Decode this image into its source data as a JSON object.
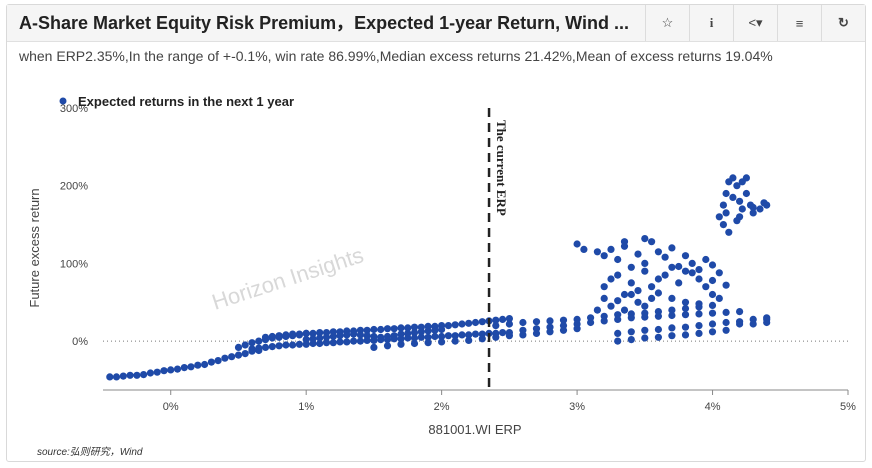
{
  "header": {
    "title": "A-Share Market Equity Risk Premium，Expected 1-year Return, Wind ...",
    "buttons": [
      {
        "name": "star-icon",
        "glyph": "☆"
      },
      {
        "name": "info-icon",
        "glyph": "i"
      },
      {
        "name": "share-icon",
        "glyph": "<▾"
      },
      {
        "name": "settings-icon",
        "glyph": "≡"
      },
      {
        "name": "refresh-icon",
        "glyph": "↻"
      }
    ]
  },
  "subtitle": "when ERP2.35%,In the range of +-0.1%,  win rate 86.99%,Median excess returns 21.42%,Mean of excess returns 19.04%",
  "watermark": "Horizon Insights",
  "source": "source:弘则研究，Wind",
  "colors": {
    "point": "#1f4aa8",
    "axis": "#888888",
    "zero_line": "#777777",
    "vline": "#222222"
  },
  "chart_data": {
    "type": "scatter",
    "title": "",
    "xlabel": "881001.WI ERP",
    "ylabel": "Future excess return",
    "xlim": [
      -0.5,
      5
    ],
    "ylim": [
      -50,
      300
    ],
    "x_ticks": [
      "0%",
      "1%",
      "2%",
      "3%",
      "4%",
      "5%"
    ],
    "y_ticks": [
      "0%",
      "100%",
      "200%",
      "300%"
    ],
    "legend": {
      "position": "top-left",
      "label": "Expected returns in the next 1 year"
    },
    "reference_line": {
      "x": 2.35,
      "label": "The current ERP"
    },
    "series": [
      {
        "name": "Expected returns in the next 1 year",
        "points": [
          [
            -0.45,
            -46
          ],
          [
            -0.4,
            -46
          ],
          [
            -0.35,
            -45
          ],
          [
            -0.3,
            -44
          ],
          [
            -0.25,
            -44
          ],
          [
            -0.2,
            -43
          ],
          [
            -0.15,
            -41
          ],
          [
            -0.1,
            -40
          ],
          [
            -0.05,
            -38
          ],
          [
            0.0,
            -37
          ],
          [
            0.05,
            -36
          ],
          [
            0.1,
            -34
          ],
          [
            0.15,
            -33
          ],
          [
            0.2,
            -31
          ],
          [
            0.25,
            -30
          ],
          [
            0.3,
            -27
          ],
          [
            0.35,
            -25
          ],
          [
            0.4,
            -22
          ],
          [
            0.45,
            -20
          ],
          [
            0.5,
            -18
          ],
          [
            0.55,
            -16
          ],
          [
            0.6,
            -13
          ],
          [
            0.65,
            -12
          ],
          [
            0.5,
            -8
          ],
          [
            0.55,
            -5
          ],
          [
            0.6,
            -2
          ],
          [
            0.65,
            0
          ],
          [
            0.7,
            2
          ],
          [
            0.75,
            4
          ],
          [
            0.8,
            5
          ],
          [
            0.85,
            6
          ],
          [
            0.9,
            7
          ],
          [
            0.95,
            8
          ],
          [
            1.0,
            10
          ],
          [
            0.6,
            -10
          ],
          [
            0.65,
            -9
          ],
          [
            0.7,
            -8
          ],
          [
            0.75,
            -7
          ],
          [
            0.8,
            -6
          ],
          [
            0.85,
            -5
          ],
          [
            0.9,
            -5
          ],
          [
            0.95,
            -4
          ],
          [
            1.0,
            -4
          ],
          [
            1.05,
            -3
          ],
          [
            1.1,
            -3
          ],
          [
            1.15,
            -2
          ],
          [
            1.2,
            -2
          ],
          [
            1.25,
            -1
          ],
          [
            1.3,
            -1
          ],
          [
            1.35,
            0
          ],
          [
            1.4,
            0
          ],
          [
            1.45,
            1
          ],
          [
            1.5,
            1
          ],
          [
            1.55,
            2
          ],
          [
            1.6,
            2
          ],
          [
            1.65,
            3
          ],
          [
            1.7,
            3
          ],
          [
            1.75,
            4
          ],
          [
            1.8,
            4
          ],
          [
            1.85,
            5
          ],
          [
            1.9,
            5
          ],
          [
            1.95,
            6
          ],
          [
            2.0,
            6
          ],
          [
            2.05,
            7
          ],
          [
            2.1,
            7
          ],
          [
            2.15,
            8
          ],
          [
            2.2,
            8
          ],
          [
            2.25,
            9
          ],
          [
            2.3,
            9
          ],
          [
            2.35,
            10
          ],
          [
            2.4,
            10
          ],
          [
            2.45,
            11
          ],
          [
            2.5,
            11
          ],
          [
            0.7,
            5
          ],
          [
            0.75,
            6
          ],
          [
            0.8,
            7
          ],
          [
            0.85,
            8
          ],
          [
            0.9,
            9
          ],
          [
            0.95,
            9
          ],
          [
            1.0,
            10
          ],
          [
            1.05,
            10
          ],
          [
            1.1,
            11
          ],
          [
            1.15,
            11
          ],
          [
            1.2,
            12
          ],
          [
            1.25,
            12
          ],
          [
            1.3,
            13
          ],
          [
            1.35,
            13
          ],
          [
            1.4,
            14
          ],
          [
            1.45,
            14
          ],
          [
            1.5,
            15
          ],
          [
            1.55,
            15
          ],
          [
            1.6,
            16
          ],
          [
            1.65,
            16
          ],
          [
            1.7,
            17
          ],
          [
            1.75,
            17
          ],
          [
            1.8,
            18
          ],
          [
            1.85,
            18
          ],
          [
            1.9,
            19
          ],
          [
            1.95,
            19
          ],
          [
            2.0,
            20
          ],
          [
            2.05,
            20
          ],
          [
            2.1,
            21
          ],
          [
            2.15,
            22
          ],
          [
            2.2,
            23
          ],
          [
            2.25,
            24
          ],
          [
            2.3,
            25
          ],
          [
            2.35,
            26
          ],
          [
            2.4,
            27
          ],
          [
            2.45,
            28
          ],
          [
            2.5,
            29
          ],
          [
            1.0,
            2
          ],
          [
            1.05,
            3
          ],
          [
            1.1,
            4
          ],
          [
            1.15,
            5
          ],
          [
            1.2,
            6
          ],
          [
            1.25,
            7
          ],
          [
            1.3,
            8
          ],
          [
            1.35,
            9
          ],
          [
            1.4,
            8
          ],
          [
            1.45,
            7
          ],
          [
            1.5,
            6
          ],
          [
            1.55,
            5
          ],
          [
            1.6,
            6
          ],
          [
            1.65,
            7
          ],
          [
            1.7,
            9
          ],
          [
            1.75,
            10
          ],
          [
            1.8,
            11
          ],
          [
            1.85,
            12
          ],
          [
            1.9,
            13
          ],
          [
            1.95,
            14
          ],
          [
            2.0,
            15
          ],
          [
            1.5,
            -8
          ],
          [
            1.6,
            -6
          ],
          [
            1.7,
            -4
          ],
          [
            1.8,
            -3
          ],
          [
            1.9,
            -2
          ],
          [
            2.0,
            -1
          ],
          [
            2.1,
            0
          ],
          [
            2.2,
            1
          ],
          [
            2.3,
            3
          ],
          [
            2.4,
            5
          ],
          [
            2.5,
            7
          ],
          [
            2.6,
            8
          ],
          [
            2.7,
            10
          ],
          [
            2.8,
            12
          ],
          [
            2.9,
            14
          ],
          [
            3.0,
            16
          ],
          [
            2.4,
            20
          ],
          [
            2.5,
            22
          ],
          [
            2.6,
            24
          ],
          [
            2.7,
            25
          ],
          [
            2.8,
            26
          ],
          [
            2.9,
            27
          ],
          [
            3.0,
            28
          ],
          [
            3.1,
            30
          ],
          [
            3.2,
            32
          ],
          [
            3.3,
            34
          ],
          [
            3.4,
            35
          ],
          [
            3.5,
            36
          ],
          [
            3.6,
            38
          ],
          [
            3.7,
            40
          ],
          [
            3.8,
            42
          ],
          [
            3.9,
            44
          ],
          [
            4.0,
            46
          ],
          [
            2.6,
            14
          ],
          [
            2.7,
            16
          ],
          [
            2.8,
            18
          ],
          [
            2.9,
            20
          ],
          [
            3.0,
            22
          ],
          [
            3.1,
            24
          ],
          [
            3.2,
            26
          ],
          [
            3.3,
            28
          ],
          [
            3.4,
            30
          ],
          [
            3.5,
            31
          ],
          [
            3.6,
            32
          ],
          [
            3.7,
            33
          ],
          [
            3.8,
            34
          ],
          [
            3.9,
            35
          ],
          [
            4.0,
            36
          ],
          [
            4.1,
            37
          ],
          [
            4.2,
            38
          ],
          [
            3.3,
            10
          ],
          [
            3.4,
            12
          ],
          [
            3.5,
            14
          ],
          [
            3.6,
            15
          ],
          [
            3.7,
            17
          ],
          [
            3.8,
            18
          ],
          [
            3.9,
            20
          ],
          [
            4.0,
            22
          ],
          [
            4.1,
            24
          ],
          [
            4.2,
            25
          ],
          [
            4.3,
            28
          ],
          [
            4.4,
            30
          ],
          [
            3.3,
            0
          ],
          [
            3.4,
            2
          ],
          [
            3.5,
            4
          ],
          [
            3.6,
            5
          ],
          [
            3.7,
            7
          ],
          [
            3.8,
            8
          ],
          [
            3.9,
            10
          ],
          [
            4.0,
            12
          ],
          [
            4.1,
            14
          ],
          [
            4.2,
            22
          ],
          [
            4.3,
            22
          ],
          [
            4.4,
            24
          ],
          [
            4.4,
            28
          ],
          [
            3.2,
            110
          ],
          [
            3.25,
            118
          ],
          [
            3.3,
            105
          ],
          [
            3.35,
            122
          ],
          [
            3.4,
            95
          ],
          [
            3.45,
            112
          ],
          [
            3.5,
            100
          ],
          [
            3.55,
            128
          ],
          [
            3.6,
            115
          ],
          [
            3.65,
            108
          ],
          [
            3.7,
            120
          ],
          [
            3.75,
            96
          ],
          [
            3.8,
            110
          ],
          [
            3.85,
            100
          ],
          [
            3.9,
            92
          ],
          [
            3.95,
            105
          ],
          [
            4.0,
            98
          ],
          [
            3.2,
            70
          ],
          [
            3.25,
            80
          ],
          [
            3.3,
            85
          ],
          [
            3.35,
            60
          ],
          [
            3.4,
            75
          ],
          [
            3.45,
            65
          ],
          [
            3.5,
            90
          ],
          [
            3.55,
            70
          ],
          [
            3.6,
            80
          ],
          [
            3.65,
            85
          ],
          [
            3.7,
            95
          ],
          [
            3.75,
            75
          ],
          [
            3.8,
            90
          ],
          [
            3.85,
            88
          ],
          [
            3.9,
            80
          ],
          [
            3.95,
            70
          ],
          [
            4.0,
            78
          ],
          [
            4.05,
            88
          ],
          [
            4.1,
            72
          ],
          [
            3.15,
            40
          ],
          [
            3.2,
            55
          ],
          [
            3.25,
            45
          ],
          [
            3.3,
            52
          ],
          [
            3.35,
            40
          ],
          [
            3.4,
            60
          ],
          [
            3.45,
            50
          ],
          [
            3.5,
            45
          ],
          [
            3.55,
            55
          ],
          [
            3.6,
            62
          ],
          [
            3.7,
            55
          ],
          [
            3.8,
            50
          ],
          [
            3.9,
            48
          ],
          [
            4.0,
            60
          ],
          [
            4.05,
            55
          ],
          [
            3.0,
            125
          ],
          [
            3.05,
            118
          ],
          [
            3.15,
            115
          ],
          [
            3.35,
            128
          ],
          [
            3.5,
            132
          ],
          [
            4.05,
            160
          ],
          [
            4.08,
            175
          ],
          [
            4.1,
            190
          ],
          [
            4.12,
            205
          ],
          [
            4.15,
            210
          ],
          [
            4.18,
            200
          ],
          [
            4.2,
            180
          ],
          [
            4.22,
            170
          ],
          [
            4.25,
            190
          ],
          [
            4.28,
            175
          ],
          [
            4.3,
            165
          ],
          [
            4.35,
            170
          ],
          [
            4.4,
            175
          ],
          [
            4.08,
            150
          ],
          [
            4.1,
            165
          ],
          [
            4.15,
            185
          ],
          [
            4.2,
            160
          ],
          [
            4.12,
            140
          ],
          [
            4.18,
            155
          ],
          [
            4.22,
            205
          ],
          [
            4.25,
            210
          ],
          [
            4.3,
            172
          ],
          [
            4.38,
            178
          ]
        ]
      }
    ]
  }
}
